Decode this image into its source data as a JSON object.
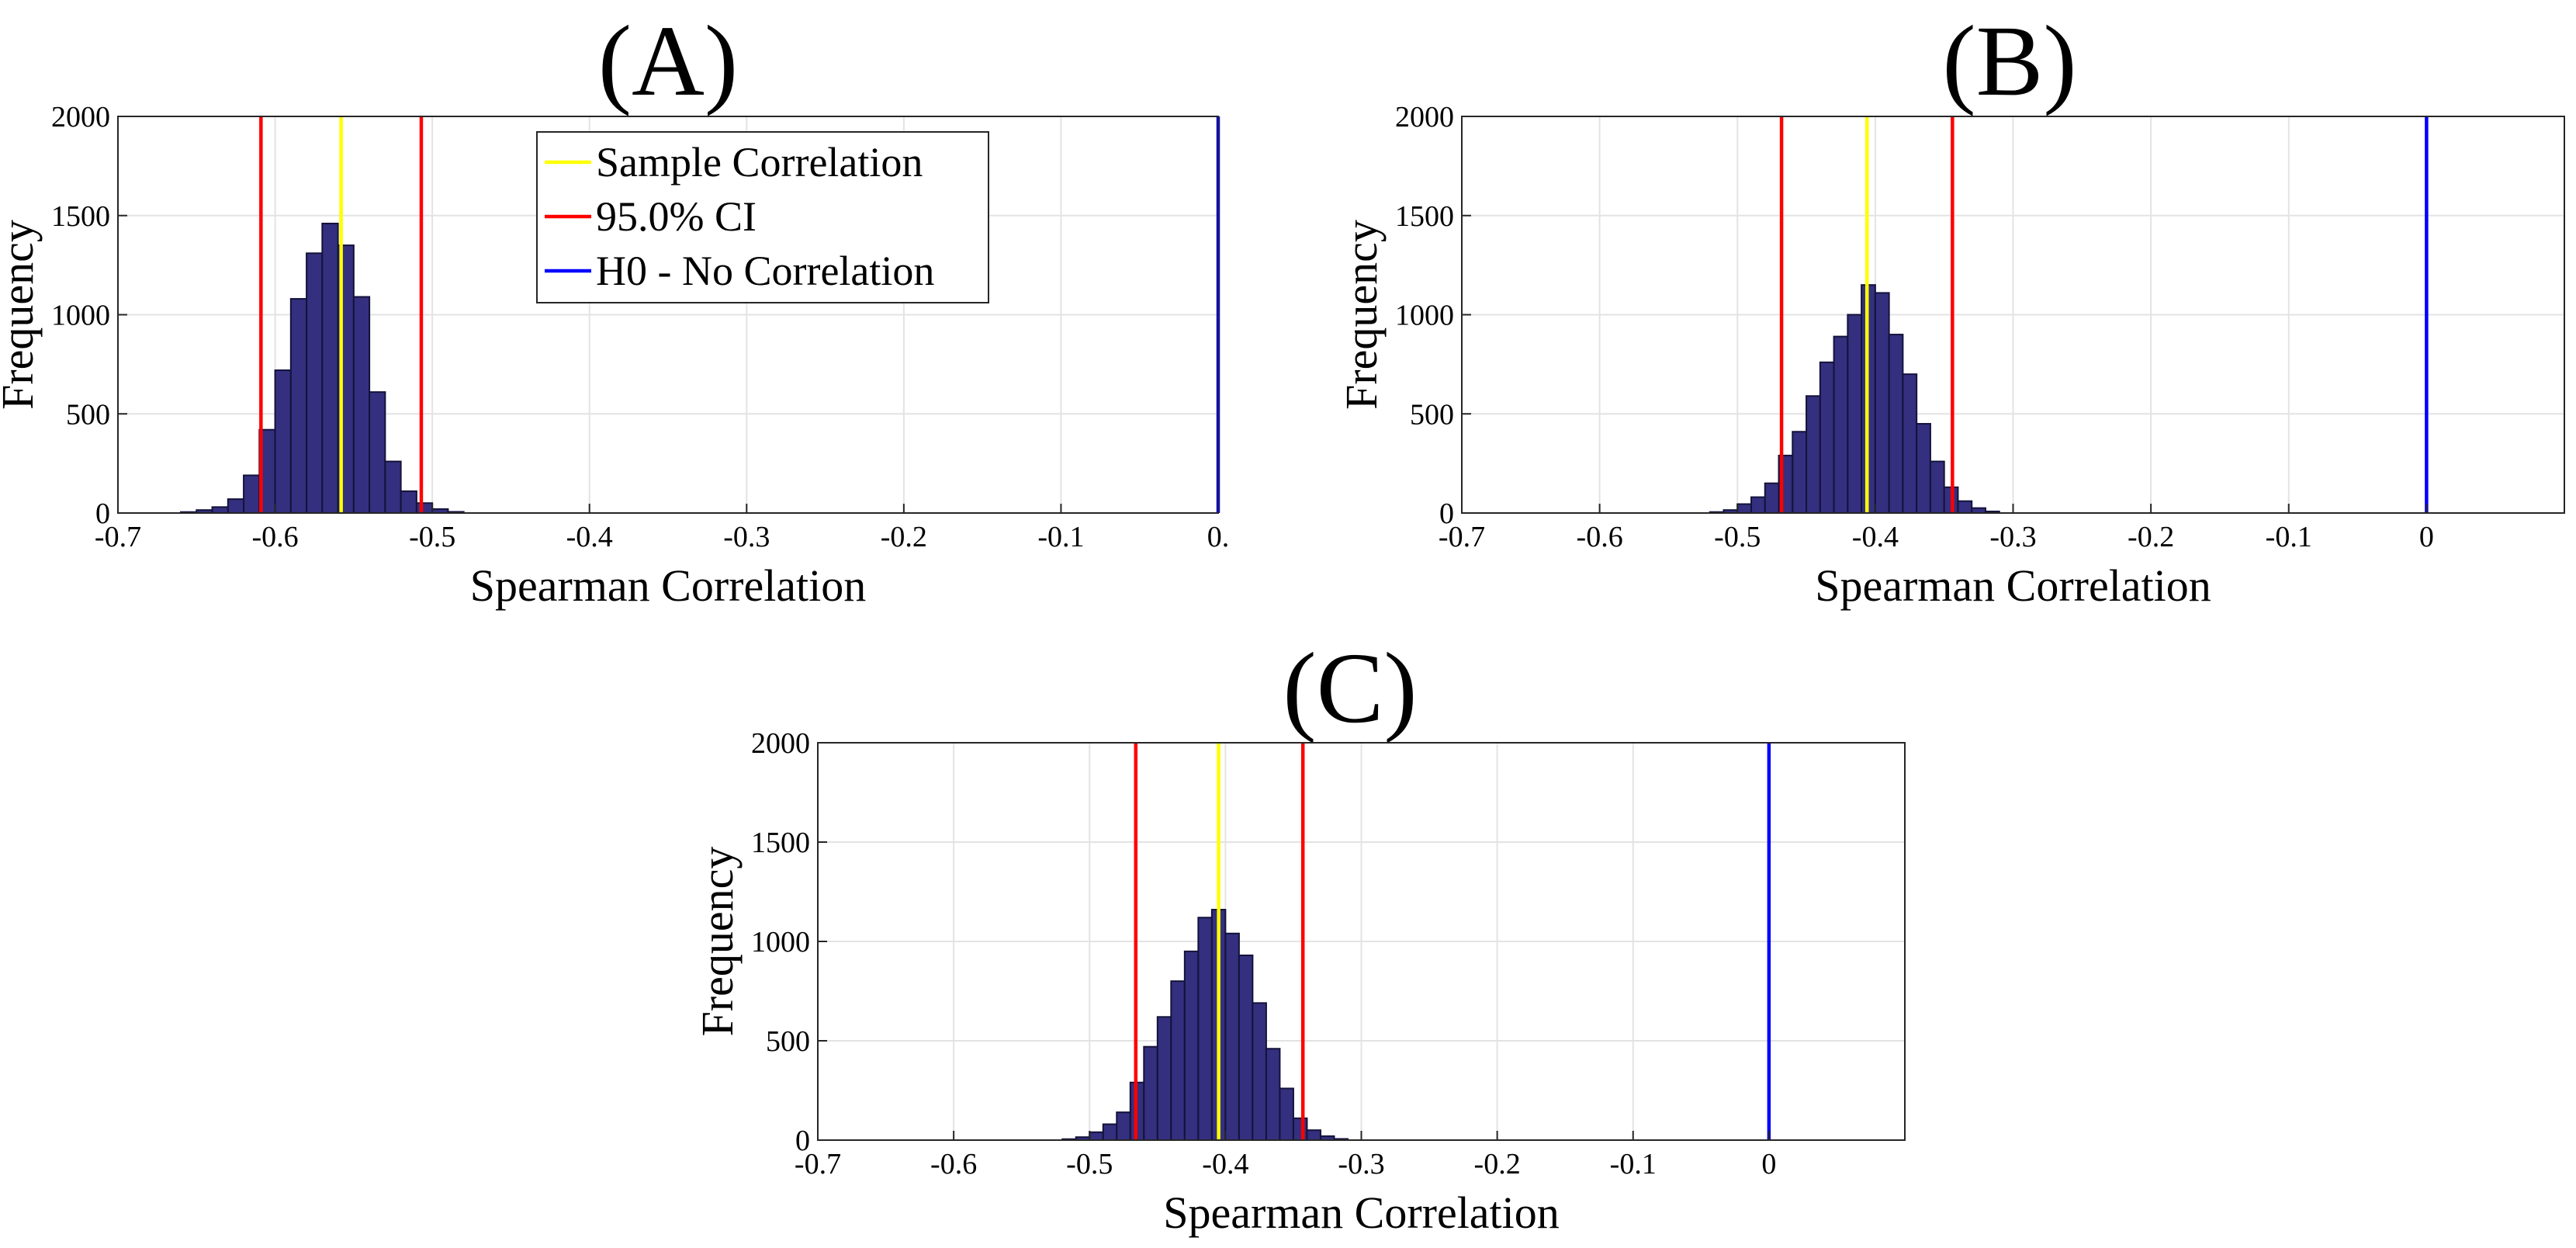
{
  "chart_data": [
    {
      "panel": "(A)",
      "type": "histogram",
      "xlabel": "Spearman Correlation",
      "ylabel": "Frequency",
      "xlim": [
        -0.7,
        0.0
      ],
      "ylim": [
        0,
        2000
      ],
      "xticks": [
        -0.7,
        -0.6,
        -0.5,
        -0.4,
        -0.3,
        -0.2,
        -0.1,
        0.0
      ],
      "xtick_labels": [
        "-0.7",
        "-0.6",
        "-0.5",
        "-0.4",
        "-0.3",
        "-0.2",
        "-0.1",
        "0."
      ],
      "yticks": [
        0,
        500,
        1000,
        1500,
        2000
      ],
      "ytick_labels": [
        "0",
        "500",
        "1000",
        "1500",
        "2000"
      ],
      "grid": true,
      "bar_color": "#34307f",
      "bar_edge_color": "#14123a",
      "bins": {
        "start": -0.66,
        "width": 0.01,
        "counts": [
          5,
          15,
          30,
          70,
          190,
          420,
          720,
          1080,
          1310,
          1460,
          1350,
          1090,
          610,
          260,
          110,
          50,
          20,
          6
        ]
      },
      "vlines": [
        {
          "name": "Sample Correlation",
          "x": -0.558,
          "color": "#ffff00"
        },
        {
          "name": "95.0% CI",
          "x": -0.609,
          "color": "#ff0000"
        },
        {
          "name": "95.0% CI",
          "x": -0.507,
          "color": "#ff0000"
        },
        {
          "name": "H0 - No Correlation",
          "x": 0.0,
          "color": "#0000ff"
        }
      ],
      "legend": {
        "placement": "top-center",
        "entries": [
          {
            "label": "Sample Correlation",
            "color": "#ffff00"
          },
          {
            "label": "95.0% CI",
            "color": "#ff0000"
          },
          {
            "label": "H0 - No Correlation",
            "color": "#0000ff"
          }
        ]
      }
    },
    {
      "panel": "(B)",
      "type": "histogram",
      "xlabel": "Spearman Correlation",
      "ylabel": "Frequency",
      "xlim": [
        -0.7,
        0.1
      ],
      "ylim": [
        0,
        2000
      ],
      "xticks": [
        -0.7,
        -0.6,
        -0.5,
        -0.4,
        -0.3,
        -0.2,
        -0.1,
        0
      ],
      "xtick_labels": [
        "-0.7",
        "-0.6",
        "-0.5",
        "-0.4",
        "-0.3",
        "-0.2",
        "-0.1",
        "0"
      ],
      "yticks": [
        0,
        500,
        1000,
        1500,
        2000
      ],
      "ytick_labels": [
        "0",
        "500",
        "1000",
        "1500",
        "2000"
      ],
      "grid": true,
      "bar_color": "#34307f",
      "bar_edge_color": "#14123a",
      "bins": {
        "start": -0.52,
        "width": 0.01,
        "counts": [
          5,
          15,
          45,
          80,
          150,
          290,
          410,
          590,
          760,
          890,
          1000,
          1150,
          1110,
          900,
          700,
          450,
          260,
          130,
          60,
          25,
          8
        ]
      },
      "vlines": [
        {
          "name": "Sample Correlation",
          "x": -0.406,
          "color": "#ffff00"
        },
        {
          "name": "95.0% CI",
          "x": -0.468,
          "color": "#ff0000"
        },
        {
          "name": "95.0% CI",
          "x": -0.344,
          "color": "#ff0000"
        },
        {
          "name": "H0 - No Correlation",
          "x": 0.0,
          "color": "#0000ff"
        }
      ]
    },
    {
      "panel": "(C)",
      "type": "histogram",
      "xlabel": "Spearman Correlation",
      "ylabel": "Frequency",
      "xlim": [
        -0.7,
        0.1
      ],
      "ylim": [
        0,
        2000
      ],
      "xticks": [
        -0.7,
        -0.6,
        -0.5,
        -0.4,
        -0.3,
        -0.2,
        -0.1,
        0
      ],
      "xtick_labels": [
        "-0.7",
        "-0.6",
        "-0.5",
        "-0.4",
        "-0.3",
        "-0.2",
        "-0.1",
        "0"
      ],
      "yticks": [
        0,
        500,
        1000,
        1500,
        2000
      ],
      "ytick_labels": [
        "0",
        "500",
        "1000",
        "1500",
        "2000"
      ],
      "grid": true,
      "bar_color": "#34307f",
      "bar_edge_color": "#14123a",
      "bins": {
        "start": -0.52,
        "width": 0.01,
        "counts": [
          5,
          15,
          40,
          80,
          140,
          290,
          470,
          620,
          800,
          950,
          1120,
          1160,
          1040,
          930,
          690,
          460,
          260,
          110,
          50,
          20,
          6
        ]
      },
      "vlines": [
        {
          "name": "Sample Correlation",
          "x": -0.405,
          "color": "#ffff00"
        },
        {
          "name": "95.0% CI",
          "x": -0.466,
          "color": "#ff0000"
        },
        {
          "name": "95.0% CI",
          "x": -0.343,
          "color": "#ff0000"
        },
        {
          "name": "H0 - No Correlation",
          "x": 0.0,
          "color": "#0000ff"
        }
      ]
    }
  ]
}
